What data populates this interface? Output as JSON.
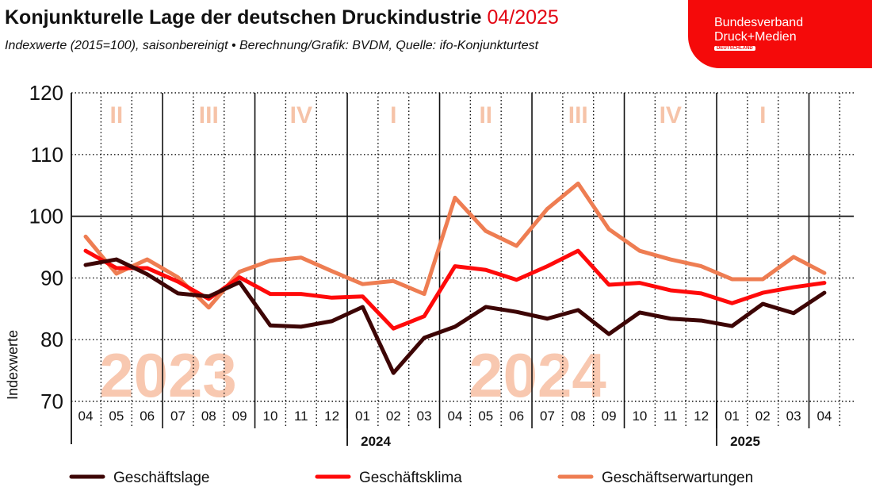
{
  "header": {
    "title": "Konjunkturelle Lage der deutschen Druckindustrie",
    "title_date": "04/2025",
    "subtitle": "Indexwerte (2015=100), saisonbereinigt • Berechnung/Grafik: BVDM, Quelle: ifo-Konjunkturtest"
  },
  "logo": {
    "line1": "Bundesverband",
    "line2": "Druck+Medien",
    "line3": "DEUTSCHLAND"
  },
  "chart_data": {
    "type": "line",
    "ylabel": "Indexwerte",
    "ylim": [
      70,
      120
    ],
    "yticks": [
      70,
      80,
      90,
      100,
      110,
      120
    ],
    "grid": true,
    "legend_placement": "bottom",
    "x": [
      "04",
      "05",
      "06",
      "07",
      "08",
      "09",
      "10",
      "11",
      "12",
      "01",
      "02",
      "03",
      "04",
      "05",
      "06",
      "07",
      "08",
      "09",
      "10",
      "11",
      "12",
      "01",
      "02",
      "03",
      "04"
    ],
    "year_labels": [
      {
        "label": "2024",
        "at_index": 9
      },
      {
        "label": "2025",
        "at_index": 21
      }
    ],
    "quarter_labels": [
      "II",
      "III",
      "IV",
      "I",
      "II",
      "III",
      "IV",
      "I"
    ],
    "background_years": [
      "2023",
      "2024"
    ],
    "series": [
      {
        "name": "Geschäftslage",
        "color": "#3d0505",
        "values": [
          92.1,
          93.0,
          90.6,
          87.5,
          87.0,
          89.3,
          82.3,
          82.1,
          83.0,
          85.3,
          74.6,
          80.3,
          82.1,
          85.3,
          84.5,
          83.4,
          84.8,
          80.9,
          84.4,
          83.4,
          83.1,
          82.2,
          85.8,
          84.3,
          87.6
        ]
      },
      {
        "name": "Geschäftsklima",
        "color": "#ff0a0a",
        "values": [
          94.4,
          91.6,
          91.6,
          89.4,
          86.6,
          90.1,
          87.4,
          87.4,
          86.8,
          87.0,
          81.8,
          83.8,
          91.9,
          91.3,
          89.7,
          91.9,
          94.4,
          88.9,
          89.2,
          88.0,
          87.5,
          85.9,
          87.6,
          88.5,
          89.2
        ]
      },
      {
        "name": "Geschäftserwartungen",
        "color": "#ee7d52",
        "values": [
          96.7,
          90.7,
          93.0,
          90.1,
          85.2,
          91.0,
          92.8,
          93.3,
          91.1,
          89.0,
          89.5,
          87.4,
          103.0,
          97.6,
          95.2,
          101.2,
          105.3,
          97.9,
          94.4,
          93.0,
          91.9,
          89.8,
          89.8,
          93.4,
          90.8
        ]
      }
    ]
  }
}
